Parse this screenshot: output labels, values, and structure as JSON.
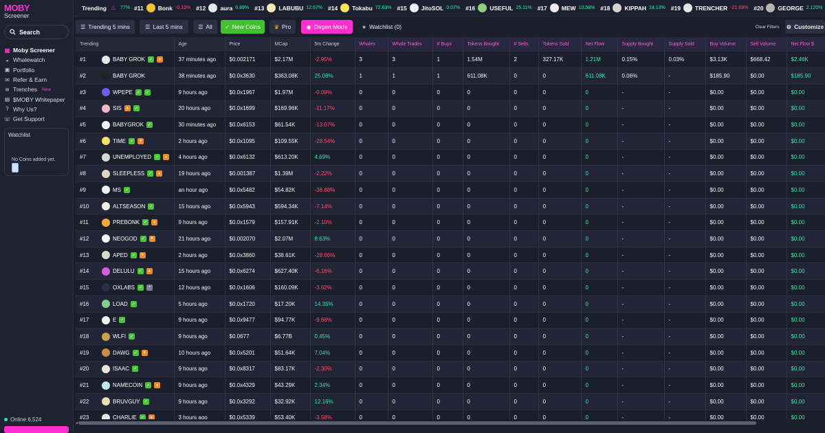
{
  "app": {
    "logo_text": "MOBY",
    "logo_sub": "Screener"
  },
  "sidebar": {
    "search_label": "Search",
    "items": [
      {
        "label": "Moby Screener",
        "icon": "bars-chart-icon",
        "active": true
      },
      {
        "label": "Whalewatch",
        "icon": "whale-icon"
      },
      {
        "label": "Portfolio",
        "icon": "wallet-icon"
      },
      {
        "label": "Refer & Earn",
        "icon": "gift-icon"
      },
      {
        "label": "Trenches",
        "icon": "trench-icon",
        "badge": "New"
      },
      {
        "label": "$MOBY Whitepaper",
        "icon": "document-icon"
      },
      {
        "label": "Why Us?",
        "icon": "help-icon"
      },
      {
        "label": "Get Support",
        "icon": "support-icon"
      }
    ],
    "watchlist_title": "Watchlist",
    "watchlist_empty": "No Coins added yet.",
    "online_text": "Online 6,524"
  },
  "ticker": {
    "label": "Trending",
    "lead_pct": "77%",
    "items": [
      {
        "rank": "#11",
        "name": "Bonk",
        "pct": "-0.13%",
        "dir": "neg",
        "color": "#f2c230"
      },
      {
        "rank": "#12",
        "name": "aura",
        "pct": "6.89%",
        "dir": "pos",
        "color": "#e8e8e8"
      },
      {
        "rank": "#13",
        "name": "LABUBU",
        "pct": "12.67%",
        "dir": "pos",
        "color": "#f5e7b8"
      },
      {
        "rank": "#14",
        "name": "Tokabu",
        "pct": "72.63%",
        "dir": "pos",
        "color": "#f7e45a"
      },
      {
        "rank": "#15",
        "name": "JitoSOL",
        "pct": "0.07%",
        "dir": "pos",
        "color": "#e9eef3"
      },
      {
        "rank": "#16",
        "name": "USEFUL",
        "pct": "25.11%",
        "dir": "pos",
        "color": "#8bd17c"
      },
      {
        "rank": "#17",
        "name": "MEW",
        "pct": "10.58%",
        "dir": "pos",
        "color": "#f1e9ef"
      },
      {
        "rank": "#18",
        "name": "KIPPAH",
        "pct": "24.13%",
        "dir": "pos",
        "color": "#d9d2c8"
      },
      {
        "rank": "#19",
        "name": "TRENCHER",
        "pct": "-21.69%",
        "dir": "neg",
        "color": "#e4e4e4"
      },
      {
        "rank": "#20",
        "name": "GEORGE",
        "pct": "2.120%",
        "dir": "pos",
        "color": "#b9b5ae"
      }
    ]
  },
  "toolbar": {
    "trending_5m": "Trending 5 mins",
    "last_5m": "Last 5 mins",
    "all": "All",
    "new_coins": "New Coins",
    "pro": "Pro",
    "degen_mode": "Degen Mode",
    "watchlist": "Watchlist (0)",
    "clear_filters": "Clear Filters",
    "customize": "Customize"
  },
  "table": {
    "columns": [
      "Trending",
      "Age",
      "Price",
      "MCap",
      "5m Change",
      "Whales",
      "Whale Trades",
      "# Buys",
      "Tokens Bought",
      "# Sells",
      "Tokens Sold",
      "Net Flow",
      "Supply Bought",
      "Supply Sold",
      "Buy Volume",
      "Sell Volume",
      "Net Flow $"
    ],
    "rows": [
      {
        "rank": "#1",
        "name": "BABY GROK",
        "icon_color": "#e9e9e9",
        "badges": [
          "g",
          "o"
        ],
        "age": "37 minutes ago",
        "price": "$0.002171",
        "mcap": "$2.17M",
        "change": "-2.95%",
        "dir": "neg",
        "whales": "3",
        "whale_trades": "3",
        "buys": "1",
        "tokens_bought": "1.54M",
        "sells": "2",
        "tokens_sold": "327.17K",
        "net_flow": "1.21M",
        "supply_bought": "0.15%",
        "supply_sold": "0.03%",
        "buy_volume": "$3.13K",
        "sell_volume": "$668.42",
        "net_flow_usd": "$2.46K"
      },
      {
        "rank": "#2",
        "name": "BABY GROK",
        "icon_color": "#222222",
        "badges": [],
        "age": "38 minutes ago",
        "price": "$0.0x3630",
        "mcap": "$363.08K",
        "change": "25.08%",
        "dir": "pos",
        "whales": "1",
        "whale_trades": "1",
        "buys": "1",
        "tokens_bought": "611.08K",
        "sells": "0",
        "tokens_sold": "0",
        "net_flow": "611.08K",
        "supply_bought": "0.06%",
        "supply_sold": "-",
        "buy_volume": "$185.90",
        "sell_volume": "$0.00",
        "net_flow_usd": "$185.90"
      },
      {
        "rank": "#3",
        "name": "WPEPE",
        "icon_color": "#6b5cf0",
        "badges": [
          "g",
          "g"
        ],
        "age": "9 hours ago",
        "price": "$0.0x1967",
        "mcap": "$1.97M",
        "change": "-0.09%",
        "dir": "neg",
        "whales": "0",
        "whale_trades": "0",
        "buys": "0",
        "tokens_bought": "0",
        "sells": "0",
        "tokens_sold": "0",
        "net_flow": "0",
        "supply_bought": "-",
        "supply_sold": "-",
        "buy_volume": "$0.00",
        "sell_volume": "$0.00",
        "net_flow_usd": "$0.00"
      },
      {
        "rank": "#4",
        "name": "SIS",
        "icon_color": "#f0b8c8",
        "badges": [
          "o",
          "g"
        ],
        "age": "20 hours ago",
        "price": "$0.0x1699",
        "mcap": "$169.96K",
        "change": "-11.17%",
        "dir": "neg",
        "whales": "0",
        "whale_trades": "0",
        "buys": "0",
        "tokens_bought": "0",
        "sells": "0",
        "tokens_sold": "0",
        "net_flow": "0",
        "supply_bought": "-",
        "supply_sold": "-",
        "buy_volume": "$0.00",
        "sell_volume": "$0.00",
        "net_flow_usd": "$0.00"
      },
      {
        "rank": "#5",
        "name": "BABYGROK",
        "icon_color": "#f4f4f4",
        "badges": [
          "g"
        ],
        "age": "30 minutes ago",
        "price": "$0.0x6153",
        "mcap": "$61.54K",
        "change": "-13.07%",
        "dir": "neg",
        "whales": "0",
        "whale_trades": "0",
        "buys": "0",
        "tokens_bought": "0",
        "sells": "0",
        "tokens_sold": "0",
        "net_flow": "0",
        "supply_bought": "-",
        "supply_sold": "-",
        "buy_volume": "$0.00",
        "sell_volume": "$0.00",
        "net_flow_usd": "$0.00"
      },
      {
        "rank": "#6",
        "name": "TIME",
        "icon_color": "#f7e36a",
        "badges": [
          "g",
          "o"
        ],
        "age": "2 hours ago",
        "price": "$0.0x1095",
        "mcap": "$109.55K",
        "change": "-28.54%",
        "dir": "neg",
        "whales": "0",
        "whale_trades": "0",
        "buys": "0",
        "tokens_bought": "0",
        "sells": "0",
        "tokens_sold": "0",
        "net_flow": "0",
        "supply_bought": "-",
        "supply_sold": "-",
        "buy_volume": "$0.00",
        "sell_volume": "$0.00",
        "net_flow_usd": "$0.00"
      },
      {
        "rank": "#7",
        "name": "UNEMPLOYED",
        "icon_color": "#d8d8d8",
        "badges": [
          "g",
          "o"
        ],
        "age": "4 hours ago",
        "price": "$0.0x6132",
        "mcap": "$613.20K",
        "change": "4.69%",
        "dir": "pos",
        "whales": "0",
        "whale_trades": "0",
        "buys": "0",
        "tokens_bought": "0",
        "sells": "0",
        "tokens_sold": "0",
        "net_flow": "0",
        "supply_bought": "-",
        "supply_sold": "-",
        "buy_volume": "$0.00",
        "sell_volume": "$0.00",
        "net_flow_usd": "$0.00"
      },
      {
        "rank": "#8",
        "name": "SLEEPLESS",
        "icon_color": "#e2d6c3",
        "badges": [
          "g",
          "o"
        ],
        "age": "19 hours ago",
        "price": "$0.001387",
        "mcap": "$1.39M",
        "change": "-2.22%",
        "dir": "neg",
        "whales": "0",
        "whale_trades": "0",
        "buys": "0",
        "tokens_bought": "0",
        "sells": "0",
        "tokens_sold": "0",
        "net_flow": "0",
        "supply_bought": "-",
        "supply_sold": "-",
        "buy_volume": "$0.00",
        "sell_volume": "$0.00",
        "net_flow_usd": "$0.00"
      },
      {
        "rank": "#9",
        "name": "MS",
        "icon_color": "#efefef",
        "badges": [
          "g"
        ],
        "age": "an hour ago",
        "price": "$0.0x5482",
        "mcap": "$54.82K",
        "change": "-38.88%",
        "dir": "neg",
        "whales": "0",
        "whale_trades": "0",
        "buys": "0",
        "tokens_bought": "0",
        "sells": "0",
        "tokens_sold": "0",
        "net_flow": "0",
        "supply_bought": "-",
        "supply_sold": "-",
        "buy_volume": "$0.00",
        "sell_volume": "$0.00",
        "net_flow_usd": "$0.00"
      },
      {
        "rank": "#10",
        "name": "ALTSEASON",
        "icon_color": "#f0ede4",
        "badges": [
          "g"
        ],
        "age": "15 hours ago",
        "price": "$0.0x5943",
        "mcap": "$594.34K",
        "change": "-7.14%",
        "dir": "neg",
        "whales": "0",
        "whale_trades": "0",
        "buys": "0",
        "tokens_bought": "0",
        "sells": "0",
        "tokens_sold": "0",
        "net_flow": "0",
        "supply_bought": "-",
        "supply_sold": "-",
        "buy_volume": "$0.00",
        "sell_volume": "$0.00",
        "net_flow_usd": "$0.00"
      },
      {
        "rank": "#11",
        "name": "PREBONK",
        "icon_color": "#f2a93b",
        "badges": [
          "g",
          "o"
        ],
        "age": "9 hours ago",
        "price": "$0.0x1579",
        "mcap": "$157.91K",
        "change": "-2.10%",
        "dir": "neg",
        "whales": "0",
        "whale_trades": "0",
        "buys": "0",
        "tokens_bought": "0",
        "sells": "0",
        "tokens_sold": "0",
        "net_flow": "0",
        "supply_bought": "-",
        "supply_sold": "-",
        "buy_volume": "$0.00",
        "sell_volume": "$0.00",
        "net_flow_usd": "$0.00"
      },
      {
        "rank": "#12",
        "name": "NEOGOD",
        "icon_color": "#f4f4f4",
        "badges": [
          "g",
          "o"
        ],
        "age": "21 hours ago",
        "price": "$0.002070",
        "mcap": "$2.07M",
        "change": "8.63%",
        "dir": "pos",
        "whales": "0",
        "whale_trades": "0",
        "buys": "0",
        "tokens_bought": "0",
        "sells": "0",
        "tokens_sold": "0",
        "net_flow": "0",
        "supply_bought": "-",
        "supply_sold": "-",
        "buy_volume": "$0.00",
        "sell_volume": "$0.00",
        "net_flow_usd": "$0.00"
      },
      {
        "rank": "#13",
        "name": "APED",
        "icon_color": "#d5dcc9",
        "badges": [
          "g",
          "o"
        ],
        "age": "2 hours ago",
        "price": "$0.0x3860",
        "mcap": "$38.61K",
        "change": "-28.66%",
        "dir": "neg",
        "whales": "0",
        "whale_trades": "0",
        "buys": "0",
        "tokens_bought": "0",
        "sells": "0",
        "tokens_sold": "0",
        "net_flow": "0",
        "supply_bought": "-",
        "supply_sold": "-",
        "buy_volume": "$0.00",
        "sell_volume": "$0.00",
        "net_flow_usd": "$0.00"
      },
      {
        "rank": "#14",
        "name": "DELULU",
        "icon_color": "#d85ae0",
        "badges": [
          "g",
          "o"
        ],
        "age": "15 hours ago",
        "price": "$0.0x6274",
        "mcap": "$627.40K",
        "change": "-6.16%",
        "dir": "neg",
        "whales": "0",
        "whale_trades": "0",
        "buys": "0",
        "tokens_bought": "0",
        "sells": "0",
        "tokens_sold": "0",
        "net_flow": "0",
        "supply_bought": "-",
        "supply_sold": "-",
        "buy_volume": "$0.00",
        "sell_volume": "$0.00",
        "net_flow_usd": "$0.00"
      },
      {
        "rank": "#15",
        "name": "OXLABS",
        "icon_color": "#2b2f45",
        "badges": [
          "g",
          "s"
        ],
        "age": "12 hours ago",
        "price": "$0.0x1606",
        "mcap": "$160.09K",
        "change": "-3.62%",
        "dir": "neg",
        "whales": "0",
        "whale_trades": "0",
        "buys": "0",
        "tokens_bought": "0",
        "sells": "0",
        "tokens_sold": "0",
        "net_flow": "0",
        "supply_bought": "-",
        "supply_sold": "-",
        "buy_volume": "$0.00",
        "sell_volume": "$0.00",
        "net_flow_usd": "$0.00"
      },
      {
        "rank": "#16",
        "name": "LOAD",
        "icon_color": "#7fd08a",
        "badges": [
          "g"
        ],
        "age": "5 hours ago",
        "price": "$0.0x1720",
        "mcap": "$17.20K",
        "change": "14.35%",
        "dir": "pos",
        "whales": "0",
        "whale_trades": "0",
        "buys": "0",
        "tokens_bought": "0",
        "sells": "0",
        "tokens_sold": "0",
        "net_flow": "0",
        "supply_bought": "-",
        "supply_sold": "-",
        "buy_volume": "$0.00",
        "sell_volume": "$0.00",
        "net_flow_usd": "$0.00"
      },
      {
        "rank": "#17",
        "name": "E",
        "icon_color": "#f2f2f2",
        "badges": [
          "g"
        ],
        "age": "9 hours ago",
        "price": "$0.0x9477",
        "mcap": "$94.77K",
        "change": "-9.66%",
        "dir": "neg",
        "whales": "0",
        "whale_trades": "0",
        "buys": "0",
        "tokens_bought": "0",
        "sells": "0",
        "tokens_sold": "0",
        "net_flow": "0",
        "supply_bought": "-",
        "supply_sold": "-",
        "buy_volume": "$0.00",
        "sell_volume": "$0.00",
        "net_flow_usd": "$0.00"
      },
      {
        "rank": "#18",
        "name": "WLFI",
        "icon_color": "#c9a24a",
        "badges": [
          "g"
        ],
        "age": "9 hours ago",
        "price": "$0.0677",
        "mcap": "$6.77B",
        "change": "0.45%",
        "dir": "pos",
        "whales": "0",
        "whale_trades": "0",
        "buys": "0",
        "tokens_bought": "0",
        "sells": "0",
        "tokens_sold": "0",
        "net_flow": "0",
        "supply_bought": "-",
        "supply_sold": "-",
        "buy_volume": "$0.00",
        "sell_volume": "$0.00",
        "net_flow_usd": "$0.00"
      },
      {
        "rank": "#19",
        "name": "DAWG",
        "icon_color": "#cf8a4a",
        "badges": [
          "g",
          "o"
        ],
        "age": "10 hours ago",
        "price": "$0.0x5201",
        "mcap": "$51.64K",
        "change": "7.04%",
        "dir": "pos",
        "whales": "0",
        "whale_trades": "0",
        "buys": "0",
        "tokens_bought": "0",
        "sells": "0",
        "tokens_sold": "0",
        "net_flow": "0",
        "supply_bought": "-",
        "supply_sold": "-",
        "buy_volume": "$0.00",
        "sell_volume": "$0.00",
        "net_flow_usd": "$0.00"
      },
      {
        "rank": "#20",
        "name": "ISAAC",
        "icon_color": "#ece7dc",
        "badges": [
          "g"
        ],
        "age": "9 hours ago",
        "price": "$0.0x8317",
        "mcap": "$83.17K",
        "change": "-2.30%",
        "dir": "neg",
        "whales": "0",
        "whale_trades": "0",
        "buys": "0",
        "tokens_bought": "0",
        "sells": "0",
        "tokens_sold": "0",
        "net_flow": "0",
        "supply_bought": "-",
        "supply_sold": "-",
        "buy_volume": "$0.00",
        "sell_volume": "$0.00",
        "net_flow_usd": "$0.00"
      },
      {
        "rank": "#21",
        "name": "NAMECOIN",
        "icon_color": "#bfe7ef",
        "badges": [
          "g",
          "o"
        ],
        "age": "9 hours ago",
        "price": "$0.0x4329",
        "mcap": "$43.29K",
        "change": "2.34%",
        "dir": "pos",
        "whales": "0",
        "whale_trades": "0",
        "buys": "0",
        "tokens_bought": "0",
        "sells": "0",
        "tokens_sold": "0",
        "net_flow": "0",
        "supply_bought": "-",
        "supply_sold": "-",
        "buy_volume": "$0.00",
        "sell_volume": "$0.00",
        "net_flow_usd": "$0.00"
      },
      {
        "rank": "#22",
        "name": "BRUVGUY",
        "icon_color": "#e9dfb0",
        "badges": [
          "g"
        ],
        "age": "9 hours ago",
        "price": "$0.0x3292",
        "mcap": "$32.92K",
        "change": "12.16%",
        "dir": "pos",
        "whales": "0",
        "whale_trades": "0",
        "buys": "0",
        "tokens_bought": "0",
        "sells": "0",
        "tokens_sold": "0",
        "net_flow": "0",
        "supply_bought": "-",
        "supply_sold": "-",
        "buy_volume": "$0.00",
        "sell_volume": "$0.00",
        "net_flow_usd": "$0.00"
      },
      {
        "rank": "#23",
        "name": "CHARLIE",
        "icon_color": "#e6e6e6",
        "badges": [
          "g",
          "o"
        ],
        "age": "3 hours ago",
        "price": "$0.0x5339",
        "mcap": "$53.40K",
        "change": "-3.58%",
        "dir": "neg",
        "whales": "0",
        "whale_trades": "0",
        "buys": "0",
        "tokens_bought": "0",
        "sells": "0",
        "tokens_sold": "0",
        "net_flow": "0",
        "supply_bought": "-",
        "supply_sold": "-",
        "buy_volume": "$0.00",
        "sell_volume": "$0.00",
        "net_flow_usd": "$0.00"
      }
    ]
  }
}
